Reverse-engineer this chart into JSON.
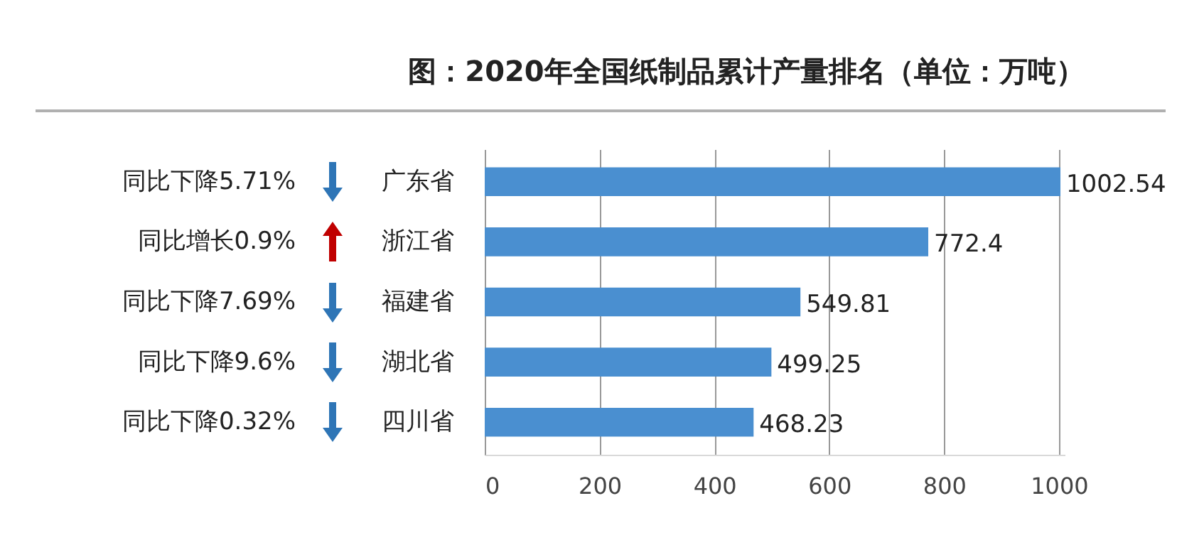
{
  "chart_data": {
    "type": "bar",
    "orientation": "horizontal",
    "title": "图：2020年全国纸制品累计产量排名（单位：万吨）",
    "categories": [
      "广东省",
      "浙江省",
      "福建省",
      "湖北省",
      "四川省"
    ],
    "values": [
      1002.54,
      772.4,
      549.81,
      499.25,
      468.23
    ],
    "color": "#4a8fd0",
    "xlim": [
      0,
      1010
    ],
    "xticks": [
      0,
      200,
      400,
      600,
      800,
      1000
    ],
    "grid": "x",
    "data_labels": true,
    "annotations": [
      "同比下降5.71%",
      "同比增长0.9%",
      "同比下降7.69%",
      "同比下降9.6%",
      "同比下降0.32%"
    ]
  }
}
